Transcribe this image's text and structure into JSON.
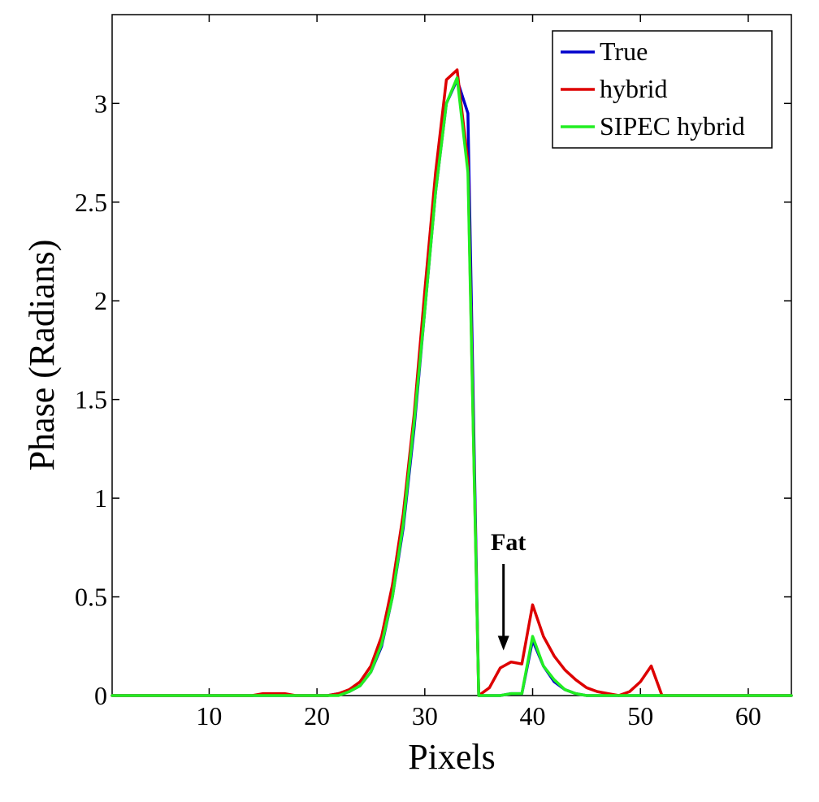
{
  "chart_data": {
    "type": "line",
    "title": "",
    "xlabel": "Pixels",
    "ylabel": "Phase (Radians)",
    "xlim": [
      1,
      64
    ],
    "ylim": [
      0,
      3.45
    ],
    "xticks": [
      10,
      20,
      30,
      40,
      50,
      60
    ],
    "yticks": [
      0,
      0.5,
      1,
      1.5,
      2,
      2.5,
      3
    ],
    "xtick_labels": [
      "10",
      "20",
      "30",
      "40",
      "50",
      "60"
    ],
    "ytick_labels": [
      "0",
      "0.5",
      "1",
      "1.5",
      "2",
      "2.5",
      "3"
    ],
    "grid": false,
    "legend_position": "top-right",
    "x": [
      1,
      2,
      3,
      4,
      5,
      6,
      7,
      8,
      9,
      10,
      11,
      12,
      13,
      14,
      15,
      16,
      17,
      18,
      19,
      20,
      21,
      22,
      23,
      24,
      25,
      26,
      27,
      28,
      29,
      30,
      31,
      32,
      33,
      34,
      35,
      36,
      37,
      38,
      39,
      40,
      41,
      42,
      43,
      44,
      45,
      46,
      47,
      48,
      49,
      50,
      51,
      52,
      53,
      54,
      55,
      56,
      57,
      58,
      59,
      60,
      61,
      62,
      63,
      64
    ],
    "series": [
      {
        "name": "True",
        "color": "#0000cc",
        "values": [
          0,
          0,
          0,
          0,
          0,
          0,
          0,
          0,
          0,
          0,
          0,
          0,
          0,
          0,
          0,
          0,
          0,
          0,
          0,
          0,
          0,
          0.01,
          0.02,
          0.05,
          0.12,
          0.25,
          0.5,
          0.85,
          1.35,
          1.95,
          2.55,
          3.0,
          3.12,
          2.95,
          0,
          0,
          0,
          0.01,
          0.01,
          0.28,
          0.15,
          0.07,
          0.03,
          0.01,
          0,
          0,
          0,
          0,
          0,
          0,
          0,
          0,
          0,
          0,
          0,
          0,
          0,
          0,
          0,
          0,
          0,
          0,
          0,
          0
        ]
      },
      {
        "name": "hybrid",
        "color": "#dd0000",
        "values": [
          0,
          0,
          0,
          0,
          0,
          0,
          0,
          0,
          0,
          0,
          0,
          0,
          0,
          0,
          0.01,
          0.01,
          0.01,
          0,
          0,
          0,
          0,
          0.01,
          0.03,
          0.07,
          0.15,
          0.3,
          0.56,
          0.92,
          1.42,
          2.05,
          2.65,
          3.12,
          3.17,
          2.7,
          0,
          0.04,
          0.14,
          0.17,
          0.16,
          0.46,
          0.3,
          0.2,
          0.13,
          0.08,
          0.04,
          0.02,
          0.01,
          0,
          0.02,
          0.07,
          0.15,
          0,
          0,
          0,
          0,
          0,
          0,
          0,
          0,
          0,
          0,
          0,
          0,
          0
        ]
      },
      {
        "name": "SIPEC hybrid",
        "color": "#22ee22",
        "values": [
          0,
          0,
          0,
          0,
          0,
          0,
          0,
          0,
          0,
          0,
          0,
          0,
          0,
          0,
          0,
          0,
          0,
          0,
          0,
          0,
          0,
          0,
          0.02,
          0.05,
          0.12,
          0.26,
          0.5,
          0.87,
          1.38,
          1.95,
          2.55,
          3.0,
          3.13,
          2.65,
          0,
          0,
          0,
          0.01,
          0.01,
          0.3,
          0.15,
          0.08,
          0.03,
          0.01,
          0,
          0,
          0,
          0,
          0,
          0,
          0,
          0,
          0,
          0,
          0,
          0,
          0,
          0,
          0,
          0,
          0,
          0,
          0,
          0
        ]
      }
    ],
    "annotations": [
      {
        "text": "Fat",
        "target_x": 37.3,
        "target_y": 0.22
      }
    ]
  }
}
